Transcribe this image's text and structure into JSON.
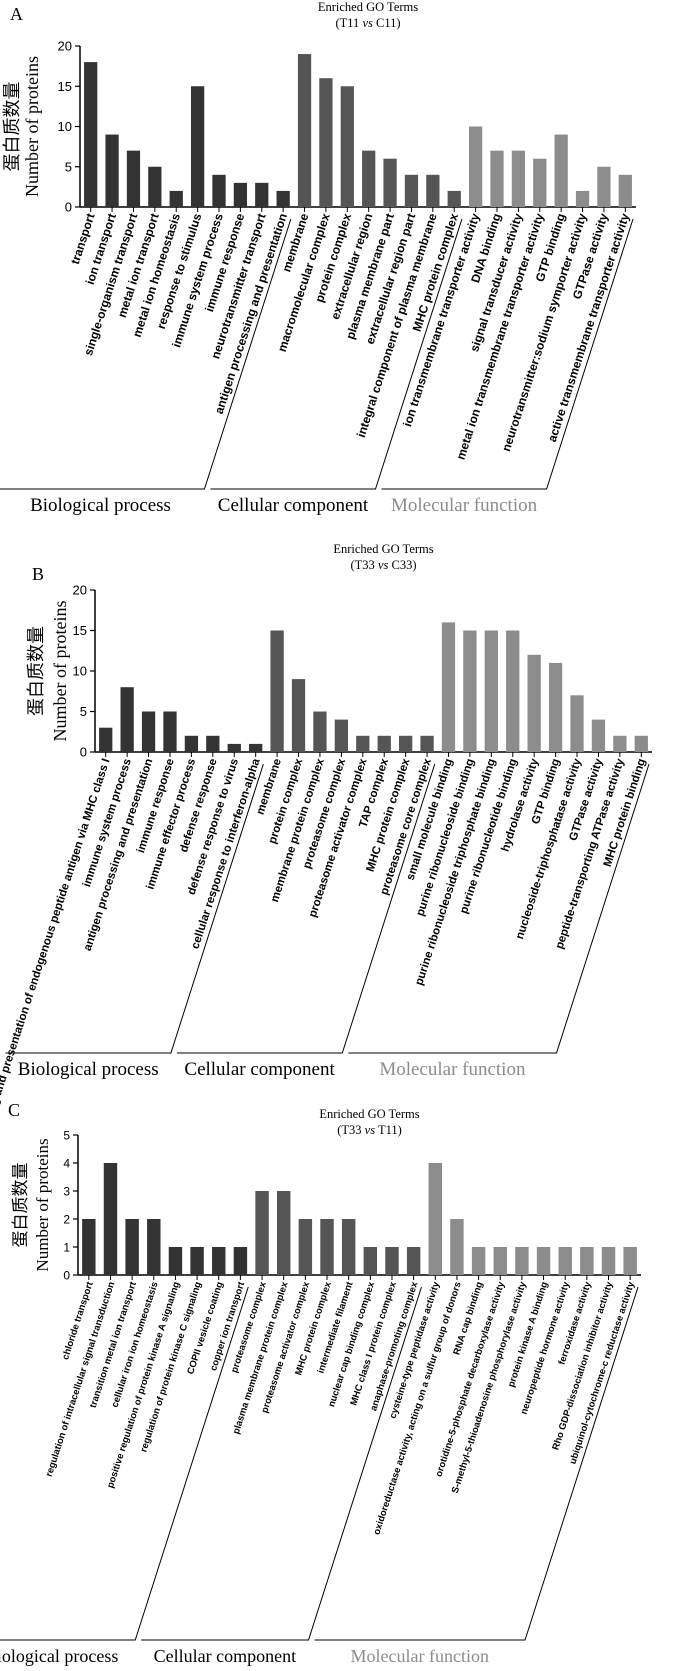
{
  "colors": {
    "bp": "#333333",
    "cc": "#555555",
    "mf": "#8c8c8c",
    "mf_text": "#8c8c8c",
    "axis": "#000000"
  },
  "chart_data": [
    {
      "panel": "A",
      "type": "bar",
      "title": "Enriched GO Terms",
      "subtitle_pre": "(T11 ",
      "subtitle_vs": "vs",
      "subtitle_post": " C11)",
      "ylabel_cn": "蛋白质数量",
      "ylabel": "Number of proteins",
      "ylim": [
        0,
        20
      ],
      "yticks": [
        "0",
        "5",
        "10",
        "15",
        "20"
      ],
      "groups": [
        {
          "name": "Biological process",
          "key": "bp",
          "categories": [
            "transport",
            "ion transport",
            "single-organism transport",
            "metal ion transport",
            "metal ion homeostasis",
            "response to stimulus",
            "immune system process",
            "immune response",
            "neurotransmitter transport",
            "antigen processing and presentation"
          ],
          "values": [
            18,
            9,
            7,
            5,
            2,
            15,
            4,
            3,
            3,
            2
          ]
        },
        {
          "name": "Cellular component",
          "key": "cc",
          "categories": [
            "membrane",
            "macromolecular complex",
            "protein complex",
            "extracellular region",
            "plasma membrane part",
            "extracellular region part",
            "integral component of plasma membrane",
            "MHC protein complex"
          ],
          "values": [
            19,
            16,
            15,
            7,
            6,
            4,
            4,
            2
          ]
        },
        {
          "name": "Molecular function",
          "key": "mf",
          "categories": [
            "ion transmembrane transporter activity",
            "DNA binding",
            "signal transducer activity",
            "metal ion transmembrane transporter activity",
            "GTP binding",
            "neurotransmitter:sodium symporter activity",
            "GTPase activity",
            "active transmembrane transporter activity"
          ],
          "values": [
            10,
            7,
            7,
            6,
            9,
            2,
            5,
            4
          ]
        }
      ]
    },
    {
      "panel": "B",
      "type": "bar",
      "title": "Enriched GO Terms",
      "subtitle_pre": "(T33 ",
      "subtitle_vs": "vs",
      "subtitle_post": " C33)",
      "ylabel_cn": "蛋白质数量",
      "ylabel": "Number of proteins",
      "ylim": [
        0,
        20
      ],
      "yticks": [
        "0",
        "5",
        "10",
        "15",
        "20"
      ],
      "groups": [
        {
          "name": "Biological process",
          "key": "bp",
          "categories": [
            "antigen processing and presentation of endogenous peptide antigen via MHC class I",
            "immune system process",
            "antigen processing and presentation",
            "immune response",
            "immune effector process",
            "defense response",
            "defense response to virus",
            "cellular response to interferon-alpha"
          ],
          "values": [
            3,
            8,
            5,
            5,
            2,
            2,
            1,
            1
          ]
        },
        {
          "name": "Cellular component",
          "key": "cc",
          "categories": [
            "membrane",
            "protein complex",
            "membrane protein complex",
            "proteasome complex",
            "proteasome activator complex",
            "TAP complex",
            "MHC protein complex",
            "proteasome core complex"
          ],
          "values": [
            15,
            9,
            5,
            4,
            2,
            2,
            2,
            2
          ]
        },
        {
          "name": "Molecular function",
          "key": "mf",
          "categories": [
            "small molecule binding",
            "purine ribonucleoside binding",
            "purine ribonucleoside triphosphate binding",
            "purine ribonucleotide binding",
            "hydrolase activity",
            "GTP binding",
            "nucleoside-triphosphatase activity",
            "GTPase activity",
            "peptide-transporting ATPase activity",
            "MHC protein binding"
          ],
          "values": [
            16,
            15,
            15,
            15,
            12,
            11,
            7,
            4,
            2,
            2
          ]
        }
      ]
    },
    {
      "panel": "C",
      "type": "bar",
      "title": "Enriched GO Terms",
      "subtitle_pre": "(T33 ",
      "subtitle_vs": "vs",
      "subtitle_post": " T11)",
      "ylabel_cn": "蛋白质数量",
      "ylabel": "Number of proteins",
      "ylim": [
        0,
        5
      ],
      "yticks": [
        "0",
        "1",
        "2",
        "3",
        "4",
        "5"
      ],
      "groups": [
        {
          "name": "Biological process",
          "key": "bp",
          "categories": [
            "chloride transport",
            "regulation of intracellular signal transduction",
            "transition metal ion transport",
            "cellular iron ion homeostasis",
            "positive regulation of protein kinase A signaling",
            "regulation of protein kinase C signaling",
            "COPII vesicle coating",
            "copper ion transport"
          ],
          "values": [
            2,
            4,
            2,
            2,
            1,
            1,
            1,
            1
          ]
        },
        {
          "name": "Cellular component",
          "key": "cc",
          "categories": [
            "proteasome complex",
            "plasma membrane protein complex",
            "proteasome activator complex",
            "MHC protein complex",
            "intermediate filament",
            "nuclear cap binding complex",
            "MHC class I protein complex",
            "anaphase-promoting complex"
          ],
          "values": [
            3,
            3,
            2,
            2,
            2,
            1,
            1,
            1
          ]
        },
        {
          "name": "Molecular function",
          "key": "mf",
          "categories": [
            "cysteine-type peptidase activity",
            "oxidoreductase activity, acting on a sulfur group of donors",
            "RNA cap binding",
            "orotidine-5-phosphate decarboxylase activity",
            "S-methyl-5-thioadenosine phosphorylase activity",
            "protein kinase A binding",
            "neuropeptide hormone activity",
            "ferroxidase activity",
            "Rho GDP-dissociation inhibitor activity",
            "ubiquinol-cytochrome-c reductase activity"
          ],
          "values": [
            4,
            2,
            1,
            1,
            1,
            1,
            1,
            1,
            1,
            1
          ]
        }
      ]
    }
  ]
}
